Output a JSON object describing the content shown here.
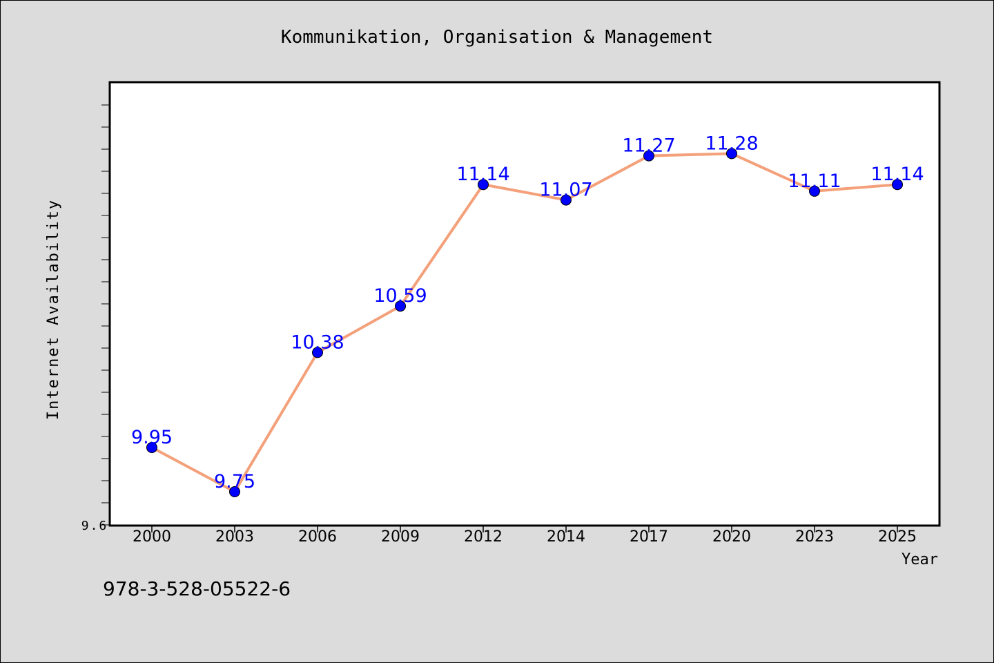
{
  "chart_data": {
    "type": "line",
    "title": "Kommunikation, Organisation & Management",
    "xlabel": "Year",
    "ylabel": "Internet Availability",
    "categories": [
      "2000",
      "2003",
      "2006",
      "2009",
      "2012",
      "2014",
      "2017",
      "2020",
      "2023",
      "2025"
    ],
    "series": [
      {
        "values": [
          9.95,
          9.75,
          10.38,
          10.59,
          11.14,
          11.07,
          11.27,
          11.28,
          11.11,
          11.14
        ],
        "labels": [
          "9.95",
          "9.75",
          "10.38",
          "10.59",
          "11.14",
          "11.07",
          "11.27",
          "11.28",
          "11.11",
          "11.14"
        ]
      }
    ],
    "ylim": [
      9.6,
      11.6
    ],
    "y_tick_labels": [
      "9.6"
    ],
    "grid": false,
    "legend": "none",
    "colors": {
      "line": "#f4a07a",
      "marker": "#0000ff",
      "data_label": "#0000ff"
    }
  },
  "footer": {
    "isbn": "978-3-528-05522-6"
  }
}
